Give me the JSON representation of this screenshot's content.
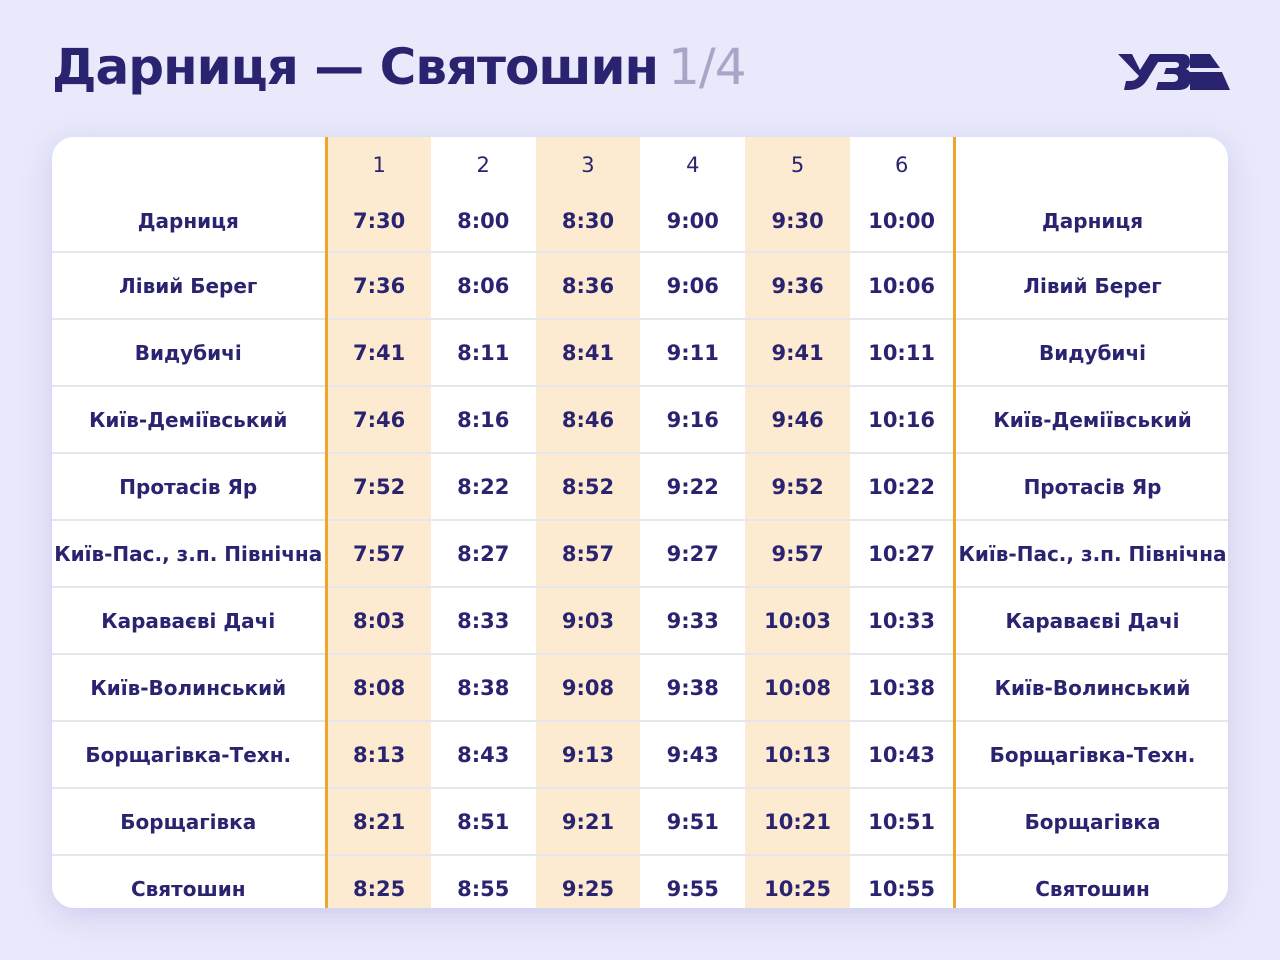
{
  "header": {
    "title": "Дарниця — Святошин",
    "page": "1/4",
    "logo": "УЗ"
  },
  "colors": {
    "text": "#2a2470",
    "highlight": "#fdebd1",
    "divider": "#f0a52c",
    "background": "#e9e9fb"
  },
  "table": {
    "columns": [
      "1",
      "2",
      "3",
      "4",
      "5",
      "6"
    ],
    "rows": [
      {
        "station": "Дарниця",
        "times": [
          "7:30",
          "8:00",
          "8:30",
          "9:00",
          "9:30",
          "10:00"
        ]
      },
      {
        "station": "Лівий Берег",
        "times": [
          "7:36",
          "8:06",
          "8:36",
          "9:06",
          "9:36",
          "10:06"
        ]
      },
      {
        "station": "Видубичі",
        "times": [
          "7:41",
          "8:11",
          "8:41",
          "9:11",
          "9:41",
          "10:11"
        ]
      },
      {
        "station": "Київ-Деміївський",
        "times": [
          "7:46",
          "8:16",
          "8:46",
          "9:16",
          "9:46",
          "10:16"
        ]
      },
      {
        "station": "Протасів Яр",
        "times": [
          "7:52",
          "8:22",
          "8:52",
          "9:22",
          "9:52",
          "10:22"
        ]
      },
      {
        "station": "Київ-Пас., з.п. Північна",
        "times": [
          "7:57",
          "8:27",
          "8:57",
          "9:27",
          "9:57",
          "10:27"
        ]
      },
      {
        "station": "Караваєві Дачі",
        "times": [
          "8:03",
          "8:33",
          "9:03",
          "9:33",
          "10:03",
          "10:33"
        ]
      },
      {
        "station": "Київ-Волинський",
        "times": [
          "8:08",
          "8:38",
          "9:08",
          "9:38",
          "10:08",
          "10:38"
        ]
      },
      {
        "station": "Борщагівка-Техн.",
        "times": [
          "8:13",
          "8:43",
          "9:13",
          "9:43",
          "10:13",
          "10:43"
        ]
      },
      {
        "station": "Борщагівка",
        "times": [
          "8:21",
          "8:51",
          "9:21",
          "9:51",
          "10:21",
          "10:51"
        ]
      },
      {
        "station": "Святошин",
        "times": [
          "8:25",
          "8:55",
          "9:25",
          "9:55",
          "10:25",
          "10:55"
        ]
      }
    ]
  }
}
